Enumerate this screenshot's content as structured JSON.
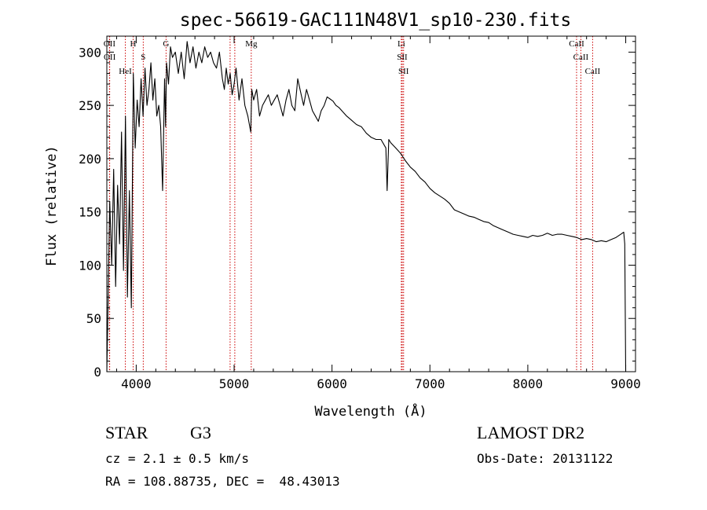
{
  "chart_data": {
    "type": "line",
    "title": "spec-56619-GAC111N48V1_sp10-230.fits",
    "xlabel": "Wavelength (Å)",
    "ylabel": "Flux (relative)",
    "xlim": [
      3700,
      9100
    ],
    "ylim": [
      0,
      315
    ],
    "xticks": [
      4000,
      5000,
      6000,
      7000,
      8000,
      9000
    ],
    "yticks": [
      0,
      50,
      100,
      150,
      200,
      250,
      300
    ],
    "grid": false,
    "line_color": "#000000",
    "marker_color": "#cc0000",
    "series": [
      {
        "x": [
          3700,
          3710,
          3730,
          3750,
          3770,
          3790,
          3810,
          3830,
          3850,
          3870,
          3890,
          3910,
          3930,
          3950,
          3970,
          3990,
          4010,
          4030,
          4050,
          4070,
          4090,
          4110,
          4130,
          4150,
          4170,
          4190,
          4210,
          4230,
          4250,
          4270,
          4290,
          4300,
          4310,
          4330,
          4350,
          4370,
          4400,
          4430,
          4460,
          4490,
          4520,
          4550,
          4580,
          4610,
          4640,
          4670,
          4700,
          4730,
          4760,
          4790,
          4820,
          4850,
          4880,
          4900,
          4920,
          4940,
          4960,
          4980,
          5000,
          5020,
          5050,
          5080,
          5110,
          5140,
          5170,
          5180,
          5200,
          5230,
          5260,
          5290,
          5320,
          5350,
          5380,
          5410,
          5440,
          5470,
          5500,
          5530,
          5560,
          5590,
          5620,
          5650,
          5680,
          5710,
          5740,
          5770,
          5800,
          5830,
          5860,
          5890,
          5920,
          5950,
          5980,
          6010,
          6040,
          6070,
          6100,
          6150,
          6200,
          6250,
          6300,
          6350,
          6400,
          6450,
          6500,
          6550,
          6563,
          6580,
          6600,
          6650,
          6700,
          6750,
          6800,
          6850,
          6900,
          6950,
          7000,
          7050,
          7100,
          7150,
          7200,
          7250,
          7300,
          7350,
          7400,
          7450,
          7500,
          7550,
          7600,
          7650,
          7700,
          7750,
          7800,
          7850,
          7900,
          7950,
          8000,
          8050,
          8100,
          8150,
          8200,
          8250,
          8300,
          8350,
          8400,
          8450,
          8500,
          8550,
          8600,
          8650,
          8700,
          8750,
          8800,
          8850,
          8900,
          8950,
          8980,
          8990,
          9000
        ],
        "y": [
          0,
          50,
          160,
          100,
          190,
          80,
          175,
          120,
          225,
          95,
          240,
          70,
          170,
          60,
          280,
          210,
          255,
          230,
          275,
          240,
          285,
          250,
          265,
          290,
          255,
          275,
          240,
          250,
          230,
          170,
          275,
          230,
          290,
          270,
          305,
          295,
          300,
          280,
          300,
          275,
          310,
          290,
          305,
          285,
          300,
          290,
          305,
          295,
          300,
          290,
          285,
          300,
          275,
          265,
          285,
          270,
          280,
          260,
          270,
          285,
          255,
          275,
          250,
          240,
          225,
          265,
          255,
          265,
          240,
          250,
          255,
          260,
          250,
          255,
          260,
          250,
          240,
          255,
          265,
          250,
          245,
          275,
          262,
          250,
          265,
          255,
          245,
          240,
          235,
          245,
          250,
          258,
          256,
          254,
          250,
          248,
          245,
          240,
          236,
          232,
          230,
          224,
          220,
          218,
          218,
          210,
          170,
          218,
          215,
          210,
          205,
          198,
          192,
          188,
          182,
          178,
          172,
          168,
          165,
          162,
          158,
          152,
          150,
          148,
          146,
          145,
          143,
          141,
          140,
          137,
          135,
          133,
          131,
          129,
          128,
          127,
          126,
          128,
          127,
          128,
          130,
          128,
          129,
          129,
          128,
          127,
          126,
          124,
          125,
          124,
          122,
          123,
          122,
          124,
          126,
          129,
          131,
          120,
          0
        ]
      }
    ],
    "annotations": [
      {
        "label": "OII",
        "x": 3727
      },
      {
        "label": "OII",
        "x": 3729
      },
      {
        "label": "HeI",
        "x": 3889
      },
      {
        "label": "H",
        "x": 3969
      },
      {
        "label": "S",
        "x": 4072
      },
      {
        "label": "G",
        "x": 4305
      },
      {
        "label": "",
        "x": 4959
      },
      {
        "label": "",
        "x": 5007
      },
      {
        "label": "Mg",
        "x": 5175
      },
      {
        "label": "Li",
        "x": 6708
      },
      {
        "label": "SII",
        "x": 6717
      },
      {
        "label": "SII",
        "x": 6731
      },
      {
        "label": "CaII",
        "x": 8498
      },
      {
        "label": "CaII",
        "x": 8542
      },
      {
        "label": "CaII",
        "x": 8662
      }
    ]
  },
  "info": {
    "object_type": "STAR",
    "subclass": "G3",
    "survey": "LAMOST DR2",
    "cz": "cz = 2.1 ± 0.5 km/s",
    "obs_date": "Obs-Date: 20131122",
    "coords": "RA = 108.88735, DEC =  48.43013"
  }
}
